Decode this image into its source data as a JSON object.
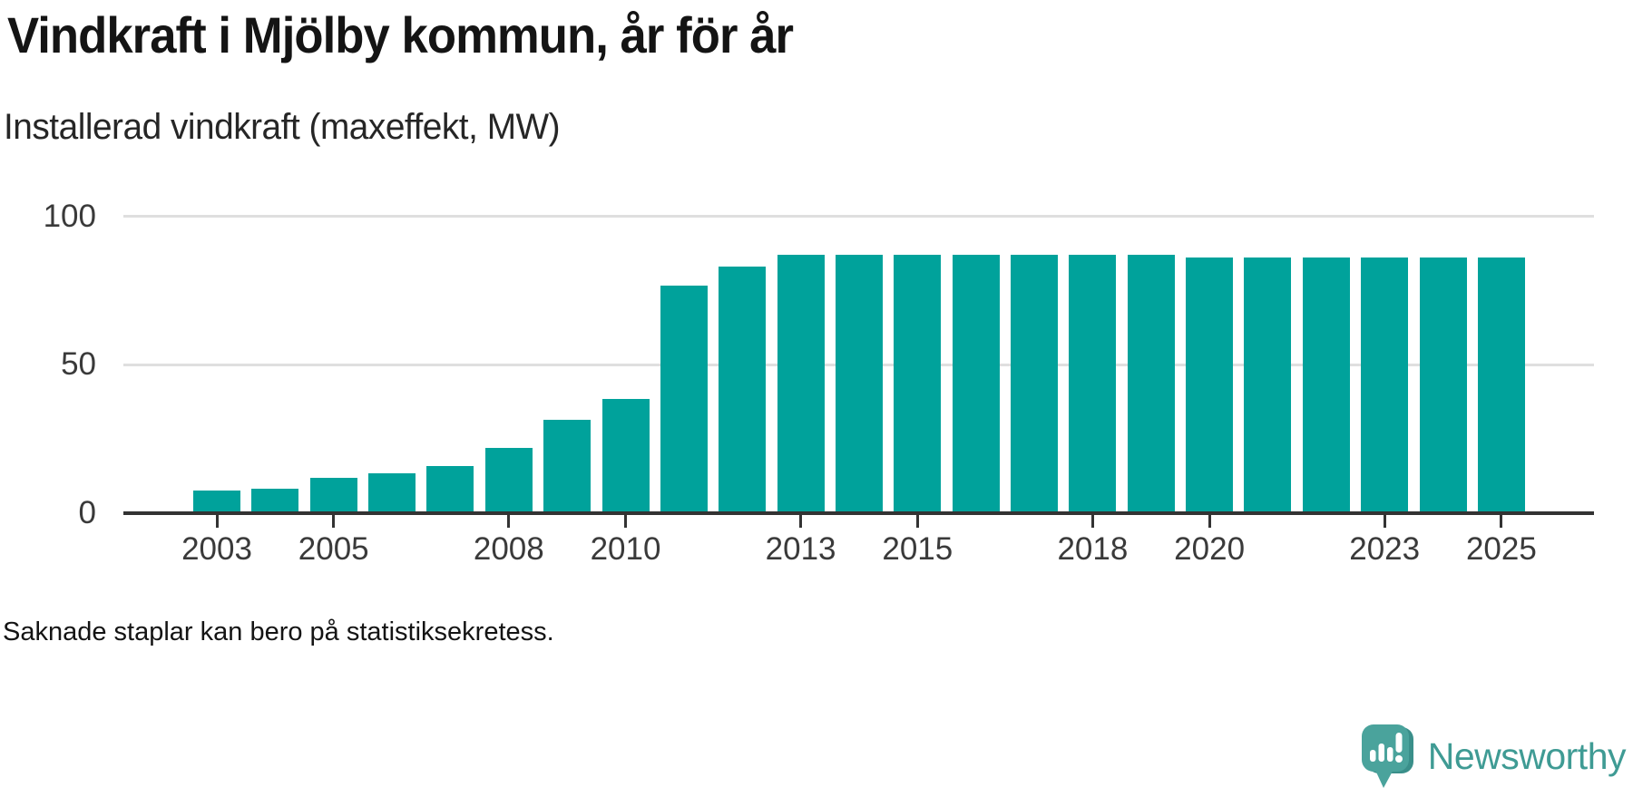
{
  "chart_data": {
    "type": "bar",
    "title": "Vindkraft i Mjölby kommun, år för år",
    "subtitle": "Installerad vindkraft (maxeffekt, MW)",
    "xlabel": "",
    "ylabel": "Installerad vindkraft (maxeffekt, MW)",
    "x": [
      2003,
      2004,
      2005,
      2006,
      2007,
      2008,
      2009,
      2010,
      2011,
      2012,
      2013,
      2014,
      2015,
      2016,
      2017,
      2018,
      2019,
      2020,
      2021,
      2022,
      2023,
      2024,
      2025
    ],
    "values": [
      7.5,
      8.3,
      12,
      13.5,
      16,
      22,
      31.5,
      38.5,
      76.5,
      83,
      87,
      87,
      87,
      87,
      87,
      87,
      87,
      86,
      86,
      86,
      86,
      86,
      86
    ],
    "ylim": [
      0,
      100
    ],
    "y_ticks": [
      0,
      50,
      100
    ],
    "x_tick_years": [
      2003,
      2005,
      2008,
      2010,
      2013,
      2015,
      2018,
      2020,
      2023,
      2025
    ],
    "grid": "horizontal-behind-bars",
    "legend": "none",
    "bar_color": "#00a29b",
    "grid_color": "#dfdfdf",
    "axis_color": "#333333"
  },
  "footnote": "Saknade staplar kan bero på statistiksekretess.",
  "logo": {
    "text": "Newsworthy",
    "text_color": "#3f9b94",
    "bubble_color": "#4aa39c",
    "bubble_shadow_color": "#3a8f8a",
    "glyph_color": "#ffffff"
  }
}
